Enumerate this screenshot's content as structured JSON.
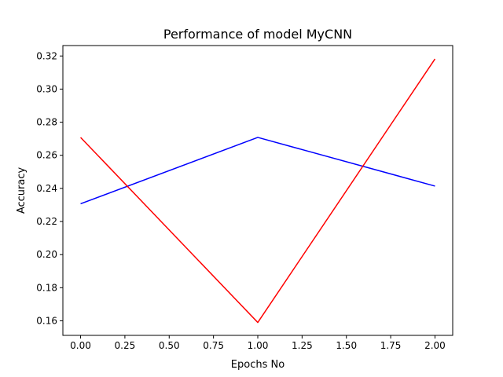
{
  "chart_data": {
    "type": "line",
    "title": "Performance of model MyCNN",
    "xlabel": "Epochs No",
    "ylabel": "Accuracy",
    "x": [
      0.0,
      1.0,
      2.0
    ],
    "xlim": [
      -0.1,
      2.1
    ],
    "ylim": [
      0.1512,
      0.3263
    ],
    "xticks": [
      0.0,
      0.25,
      0.5,
      0.75,
      1.0,
      1.25,
      1.5,
      1.75,
      2.0
    ],
    "xtick_labels": [
      "0.00",
      "0.25",
      "0.50",
      "0.75",
      "1.00",
      "1.25",
      "1.50",
      "1.75",
      "2.00"
    ],
    "yticks": [
      0.16,
      0.18,
      0.2,
      0.22,
      0.24,
      0.26,
      0.28,
      0.3,
      0.32
    ],
    "ytick_labels": [
      "0.16",
      "0.18",
      "0.20",
      "0.22",
      "0.24",
      "0.26",
      "0.28",
      "0.30",
      "0.32"
    ],
    "grid": false,
    "legend": "none",
    "series": [
      {
        "color": "#0000ff",
        "values": [
          0.2307,
          0.2708,
          0.2414
        ]
      },
      {
        "color": "#ff0000",
        "values": [
          0.2708,
          0.159,
          0.3182
        ]
      }
    ]
  }
}
